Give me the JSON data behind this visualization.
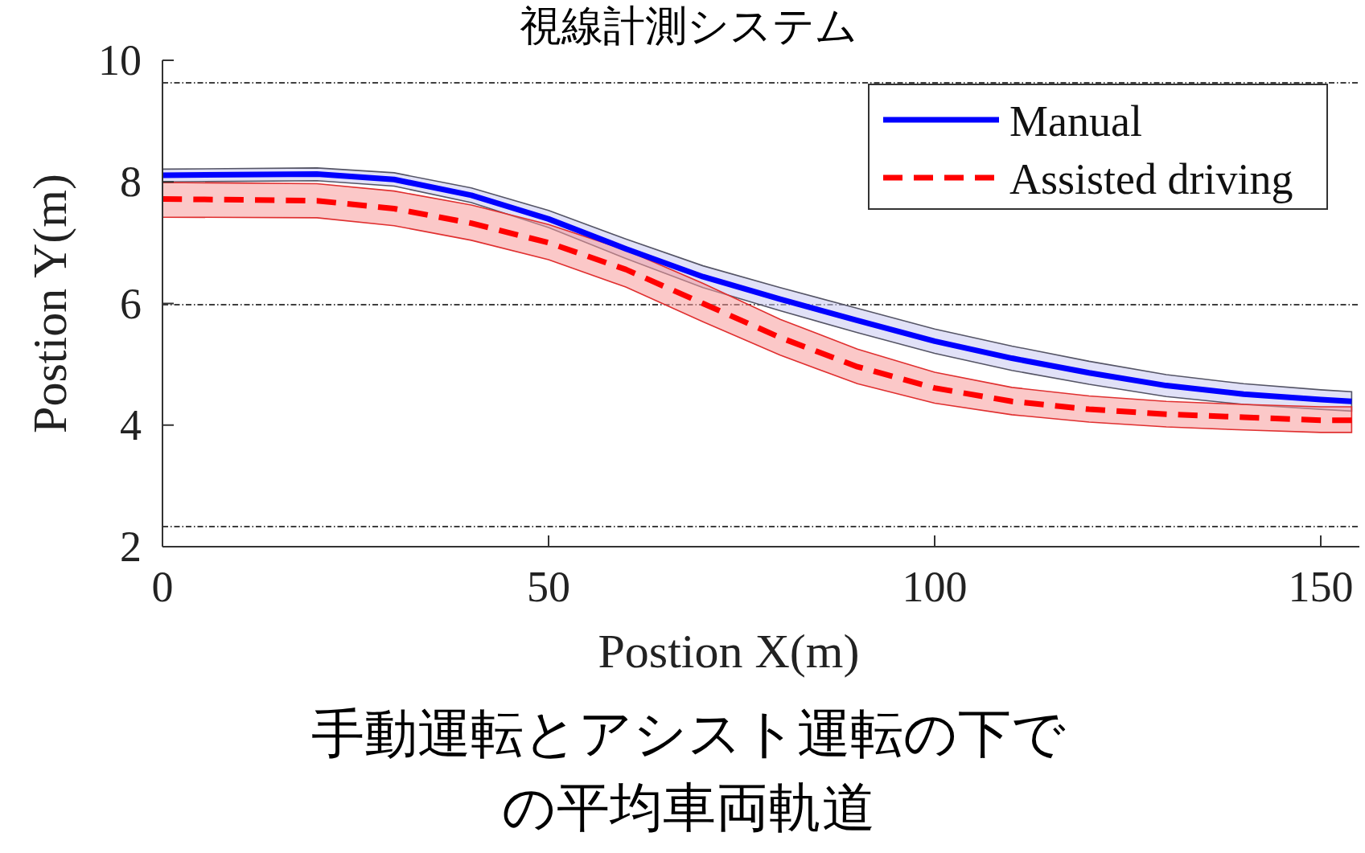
{
  "chart_data": {
    "type": "line",
    "title": "視線計測システム",
    "xlabel": "Postion X(m)",
    "ylabel": "Postion Y(m)",
    "x": [
      0,
      20,
      30,
      40,
      50,
      60,
      70,
      80,
      90,
      100,
      110,
      120,
      130,
      140,
      150,
      154
    ],
    "series": [
      {
        "name": "Manual",
        "color": "#0000ff",
        "line_style": "solid",
        "values": [
          8.11,
          8.13,
          8.04,
          7.78,
          7.39,
          6.9,
          6.44,
          6.07,
          5.72,
          5.38,
          5.1,
          4.86,
          4.65,
          4.51,
          4.42,
          4.39
        ],
        "upper": [
          8.21,
          8.23,
          8.15,
          7.9,
          7.53,
          7.06,
          6.62,
          6.26,
          5.92,
          5.58,
          5.3,
          5.05,
          4.83,
          4.68,
          4.58,
          4.55
        ],
        "lower": [
          8.0,
          8.02,
          7.93,
          7.66,
          7.25,
          6.74,
          6.26,
          5.88,
          5.52,
          5.18,
          4.9,
          4.67,
          4.47,
          4.34,
          4.26,
          4.23
        ]
      },
      {
        "name": "Assisted driving",
        "color": "#ff0000",
        "line_style": "dashed",
        "values": [
          7.72,
          7.69,
          7.56,
          7.32,
          7.0,
          6.56,
          6.0,
          5.44,
          4.96,
          4.61,
          4.39,
          4.26,
          4.18,
          4.13,
          4.08,
          4.08
        ],
        "upper": [
          7.99,
          7.97,
          7.85,
          7.62,
          7.3,
          6.88,
          6.33,
          5.74,
          5.25,
          4.87,
          4.62,
          4.48,
          4.39,
          4.34,
          4.3,
          4.3
        ],
        "lower": [
          7.42,
          7.41,
          7.28,
          7.04,
          6.72,
          6.27,
          5.7,
          5.15,
          4.68,
          4.36,
          4.17,
          4.05,
          3.97,
          3.92,
          3.88,
          3.88
        ]
      }
    ],
    "xlim": [
      0,
      155
    ],
    "ylim": [
      2,
      10
    ],
    "xticks": [
      0,
      50,
      100,
      150
    ],
    "yticks": [
      2,
      4,
      6,
      8,
      10
    ],
    "ref_lines": [
      {
        "axis": "y",
        "value": 9.63,
        "color": "#000000",
        "line_style": "dashed"
      },
      {
        "axis": "y",
        "value": 5.98,
        "color": "#000000",
        "line_style": "dashed"
      },
      {
        "axis": "y",
        "value": 2.33,
        "color": "#000000",
        "line_style": "dashed"
      }
    ],
    "legend": "top right",
    "grid": false,
    "marker": "none",
    "annotations": [
      "手動運転とアシスト運転の下での平均車両軌道"
    ]
  }
}
